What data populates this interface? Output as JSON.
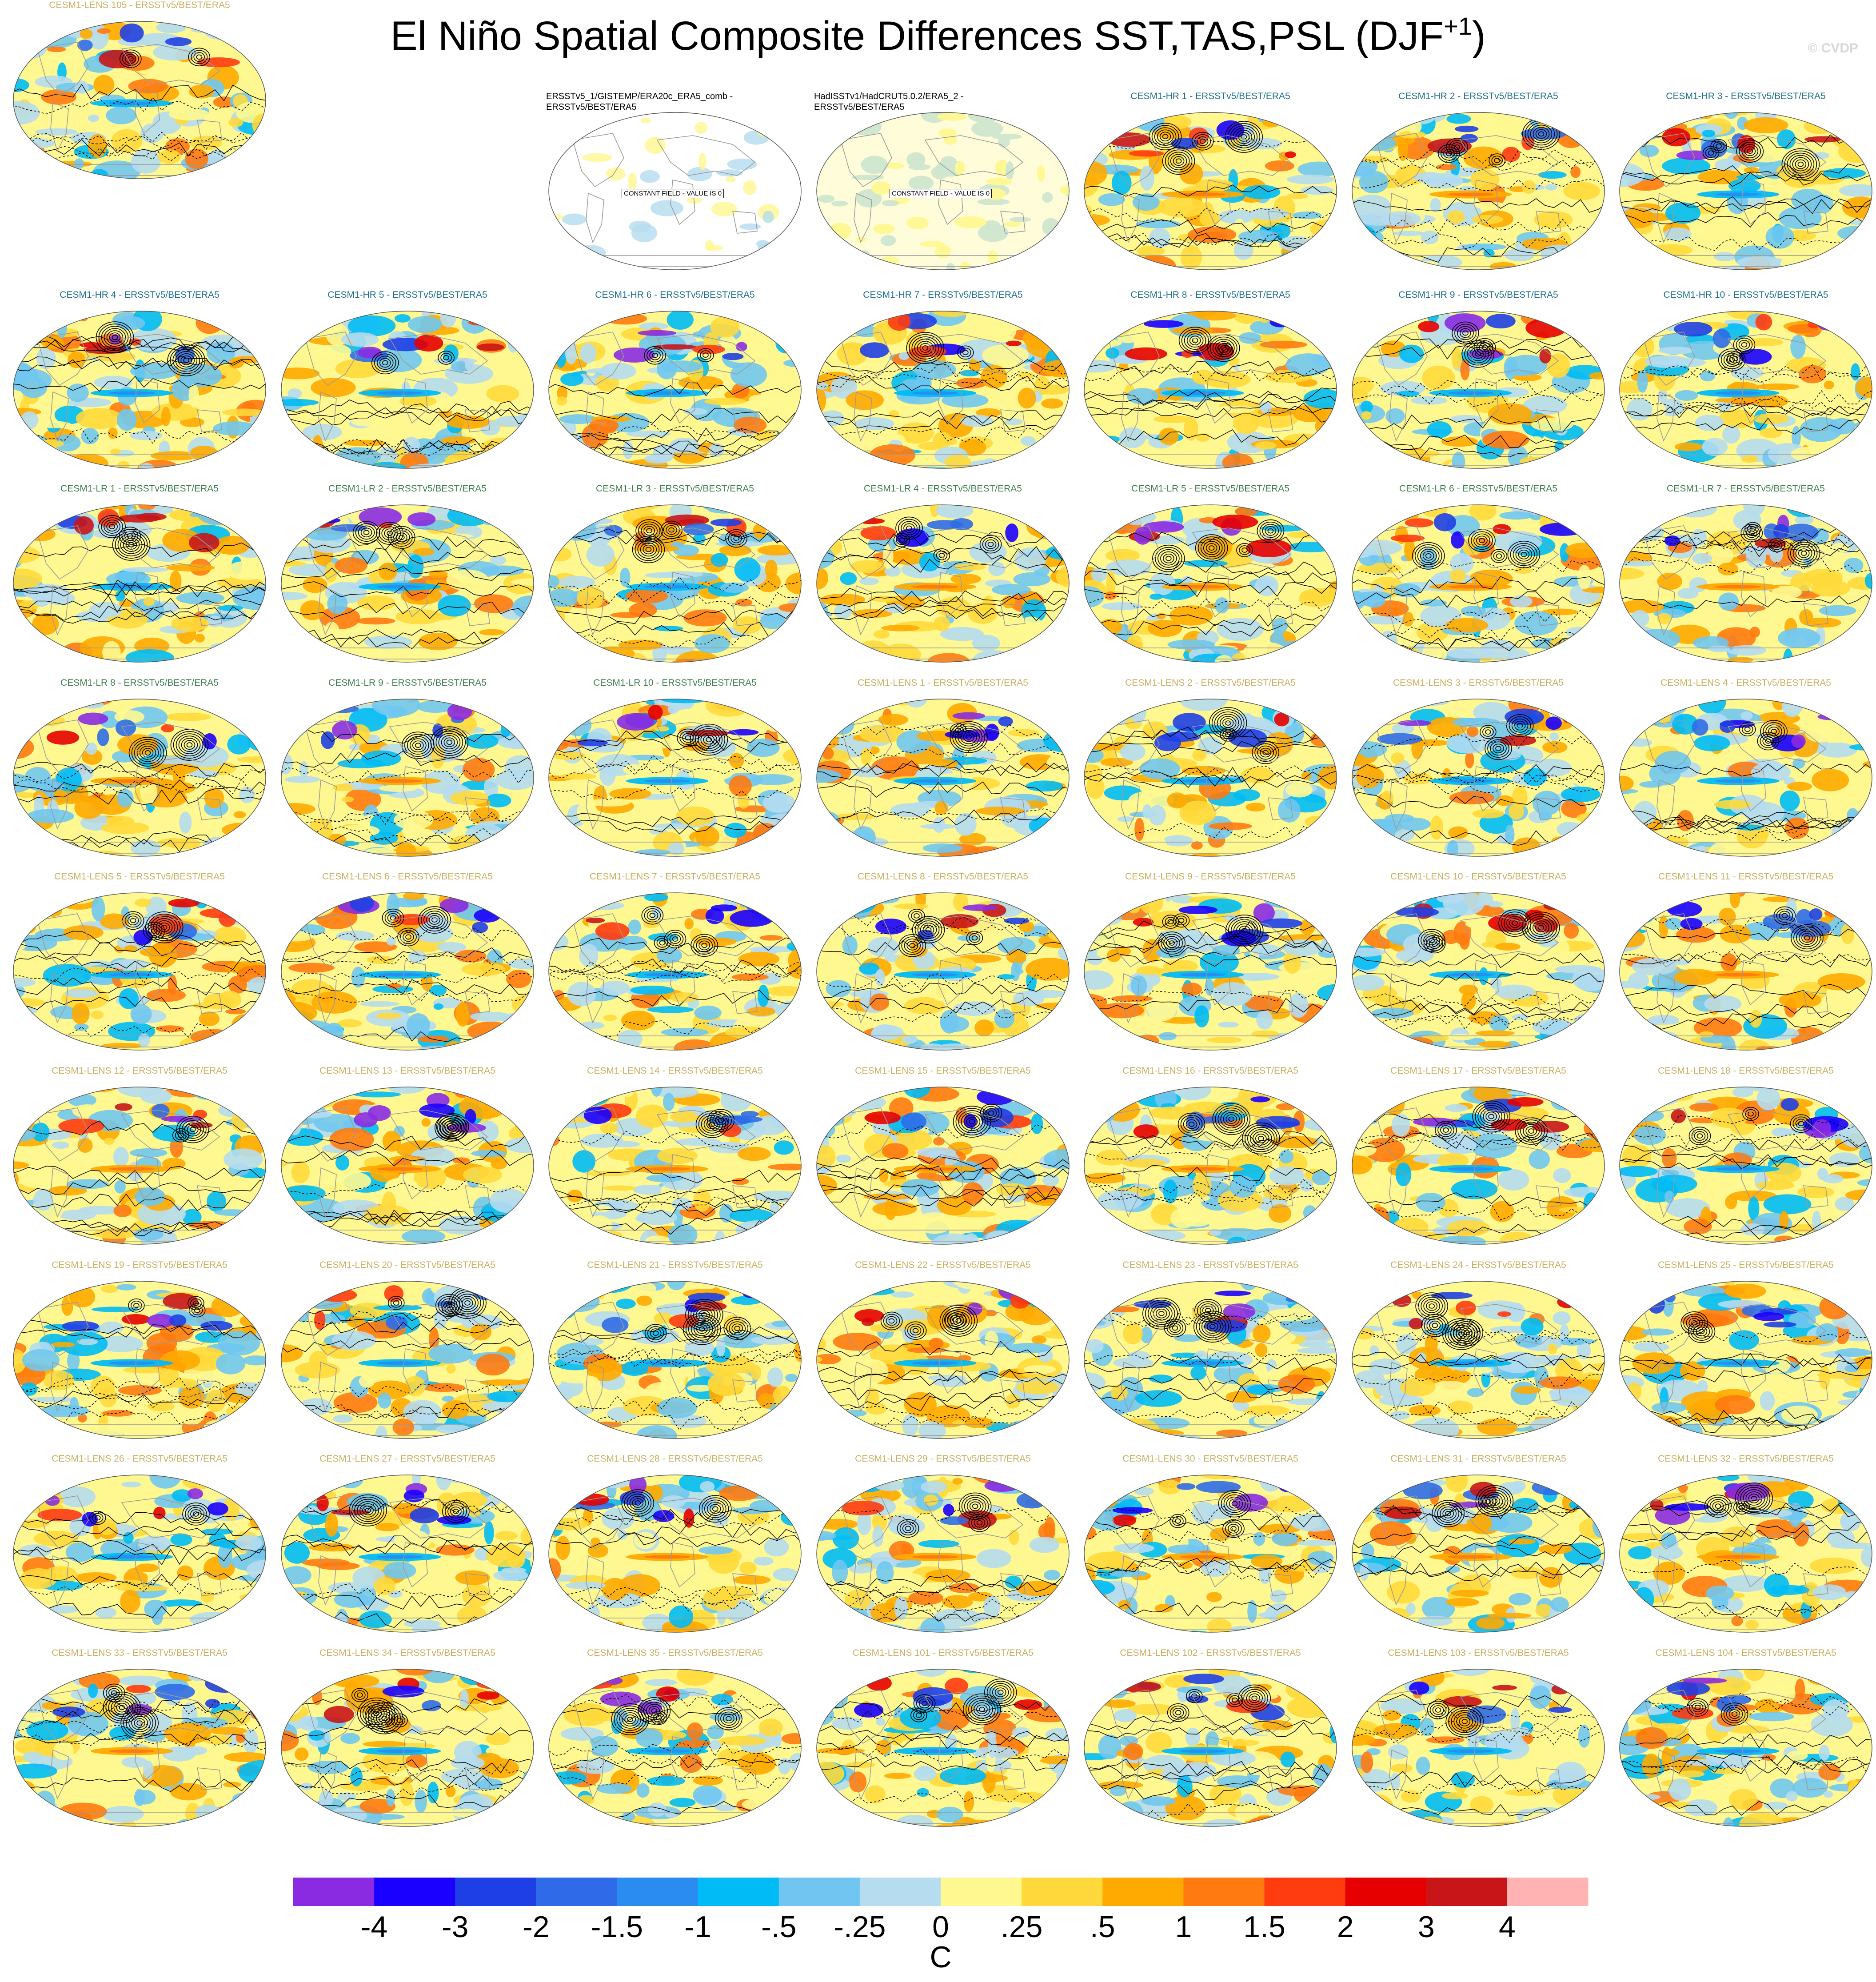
{
  "title": {
    "main": "El Niño Spatial Composite Differences SST,TAS,PSL (DJF",
    "sup": "+1",
    "close": ")"
  },
  "watermark": "© CVDP",
  "colors": {
    "hr_title": "#1f6f8f",
    "lr_title": "#3f7f50",
    "lens_title": "#c8b060",
    "land_outline": "#9a9a9a",
    "contour": "#000000"
  },
  "chart_data": {
    "type": "heatmap",
    "description_variables": [
      "SST",
      "TAS",
      "PSL"
    ],
    "colorbar": {
      "unit": "C",
      "colors": [
        "#8a2be2",
        "#1a00ff",
        "#1f3fe6",
        "#2f6be8",
        "#2a8cf0",
        "#00bbf5",
        "#70c6f0",
        "#b5dcef",
        "#fff891",
        "#ffd93b",
        "#ffaa00",
        "#ff7a10",
        "#ff3b10",
        "#e60000",
        "#c81518",
        "#ffb3b3"
      ],
      "tick_labels": [
        "-4",
        "-3",
        "-2",
        "-1.5",
        "-1",
        "-.5",
        "-.25",
        "0",
        ".25",
        ".5",
        "1",
        "1.5",
        "2",
        "3",
        "4"
      ]
    },
    "panels": [
      {
        "title": "ERSSTv5_1/GISTEMP/ERA20c_ERA5_comb -\nERSSTv5/BEST/ERA5",
        "group": "obs",
        "constant_label": "CONSTANT FIELD - VALUE IS 0"
      },
      {
        "title": "HadISSTv1/HadCRUT5.0.2/ERA5_2 -\nERSSTv5/BEST/ERA5",
        "group": "obs",
        "constant_label": "CONSTANT FIELD - VALUE IS 0"
      },
      {
        "title": "CESM1-HR 1 - ERSSTv5/BEST/ERA5",
        "group": "hr"
      },
      {
        "title": "CESM1-HR 2 - ERSSTv5/BEST/ERA5",
        "group": "hr"
      },
      {
        "title": "CESM1-HR 3 - ERSSTv5/BEST/ERA5",
        "group": "hr"
      },
      {
        "title": "CESM1-HR 4 - ERSSTv5/BEST/ERA5",
        "group": "hr"
      },
      {
        "title": "CESM1-HR 5 - ERSSTv5/BEST/ERA5",
        "group": "hr"
      },
      {
        "title": "CESM1-HR 6 - ERSSTv5/BEST/ERA5",
        "group": "hr"
      },
      {
        "title": "CESM1-HR 7 - ERSSTv5/BEST/ERA5",
        "group": "hr"
      },
      {
        "title": "CESM1-HR 8 - ERSSTv5/BEST/ERA5",
        "group": "hr"
      },
      {
        "title": "CESM1-HR 9 - ERSSTv5/BEST/ERA5",
        "group": "hr"
      },
      {
        "title": "CESM1-HR 10 - ERSSTv5/BEST/ERA5",
        "group": "hr"
      },
      {
        "title": "CESM1-LR 1 - ERSSTv5/BEST/ERA5",
        "group": "lr"
      },
      {
        "title": "CESM1-LR 2 - ERSSTv5/BEST/ERA5",
        "group": "lr"
      },
      {
        "title": "CESM1-LR 3 - ERSSTv5/BEST/ERA5",
        "group": "lr"
      },
      {
        "title": "CESM1-LR 4 - ERSSTv5/BEST/ERA5",
        "group": "lr"
      },
      {
        "title": "CESM1-LR 5 - ERSSTv5/BEST/ERA5",
        "group": "lr"
      },
      {
        "title": "CESM1-LR 6 - ERSSTv5/BEST/ERA5",
        "group": "lr"
      },
      {
        "title": "CESM1-LR 7 - ERSSTv5/BEST/ERA5",
        "group": "lr"
      },
      {
        "title": "CESM1-LR 8 - ERSSTv5/BEST/ERA5",
        "group": "lr"
      },
      {
        "title": "CESM1-LR 9 - ERSSTv5/BEST/ERA5",
        "group": "lr"
      },
      {
        "title": "CESM1-LR 10 - ERSSTv5/BEST/ERA5",
        "group": "lr"
      },
      {
        "title": "CESM1-LENS 1 - ERSSTv5/BEST/ERA5",
        "group": "lens"
      },
      {
        "title": "CESM1-LENS 2 - ERSSTv5/BEST/ERA5",
        "group": "lens"
      },
      {
        "title": "CESM1-LENS 3 - ERSSTv5/BEST/ERA5",
        "group": "lens"
      },
      {
        "title": "CESM1-LENS 4 - ERSSTv5/BEST/ERA5",
        "group": "lens"
      },
      {
        "title": "CESM1-LENS 5 - ERSSTv5/BEST/ERA5",
        "group": "lens"
      },
      {
        "title": "CESM1-LENS 6 - ERSSTv5/BEST/ERA5",
        "group": "lens"
      },
      {
        "title": "CESM1-LENS 7 - ERSSTv5/BEST/ERA5",
        "group": "lens"
      },
      {
        "title": "CESM1-LENS 8 - ERSSTv5/BEST/ERA5",
        "group": "lens"
      },
      {
        "title": "CESM1-LENS 9 - ERSSTv5/BEST/ERA5",
        "group": "lens"
      },
      {
        "title": "CESM1-LENS 10 - ERSSTv5/BEST/ERA5",
        "group": "lens"
      },
      {
        "title": "CESM1-LENS 11 - ERSSTv5/BEST/ERA5",
        "group": "lens"
      },
      {
        "title": "CESM1-LENS 12 - ERSSTv5/BEST/ERA5",
        "group": "lens"
      },
      {
        "title": "CESM1-LENS 13 - ERSSTv5/BEST/ERA5",
        "group": "lens"
      },
      {
        "title": "CESM1-LENS 14 - ERSSTv5/BEST/ERA5",
        "group": "lens"
      },
      {
        "title": "CESM1-LENS 15 - ERSSTv5/BEST/ERA5",
        "group": "lens"
      },
      {
        "title": "CESM1-LENS 16 - ERSSTv5/BEST/ERA5",
        "group": "lens"
      },
      {
        "title": "CESM1-LENS 17 - ERSSTv5/BEST/ERA5",
        "group": "lens"
      },
      {
        "title": "CESM1-LENS 18 - ERSSTv5/BEST/ERA5",
        "group": "lens"
      },
      {
        "title": "CESM1-LENS 19 - ERSSTv5/BEST/ERA5",
        "group": "lens"
      },
      {
        "title": "CESM1-LENS 20 - ERSSTv5/BEST/ERA5",
        "group": "lens"
      },
      {
        "title": "CESM1-LENS 21 - ERSSTv5/BEST/ERA5",
        "group": "lens"
      },
      {
        "title": "CESM1-LENS 22 - ERSSTv5/BEST/ERA5",
        "group": "lens"
      },
      {
        "title": "CESM1-LENS 23 - ERSSTv5/BEST/ERA5",
        "group": "lens"
      },
      {
        "title": "CESM1-LENS 24 - ERSSTv5/BEST/ERA5",
        "group": "lens"
      },
      {
        "title": "CESM1-LENS 25 - ERSSTv5/BEST/ERA5",
        "group": "lens"
      },
      {
        "title": "CESM1-LENS 26 - ERSSTv5/BEST/ERA5",
        "group": "lens"
      },
      {
        "title": "CESM1-LENS 27 - ERSSTv5/BEST/ERA5",
        "group": "lens"
      },
      {
        "title": "CESM1-LENS 28 - ERSSTv5/BEST/ERA5",
        "group": "lens"
      },
      {
        "title": "CESM1-LENS 29 - ERSSTv5/BEST/ERA5",
        "group": "lens"
      },
      {
        "title": "CESM1-LENS 30 - ERSSTv5/BEST/ERA5",
        "group": "lens"
      },
      {
        "title": "CESM1-LENS 31 - ERSSTv5/BEST/ERA5",
        "group": "lens"
      },
      {
        "title": "CESM1-LENS 32 - ERSSTv5/BEST/ERA5",
        "group": "lens"
      },
      {
        "title": "CESM1-LENS 33 - ERSSTv5/BEST/ERA5",
        "group": "lens"
      },
      {
        "title": "CESM1-LENS 34 - ERSSTv5/BEST/ERA5",
        "group": "lens"
      },
      {
        "title": "CESM1-LENS 35 - ERSSTv5/BEST/ERA5",
        "group": "lens"
      },
      {
        "title": "CESM1-LENS 101 - ERSSTv5/BEST/ERA5",
        "group": "lens"
      },
      {
        "title": "CESM1-LENS 102 - ERSSTv5/BEST/ERA5",
        "group": "lens"
      },
      {
        "title": "CESM1-LENS 103 - ERSSTv5/BEST/ERA5",
        "group": "lens"
      },
      {
        "title": "CESM1-LENS 104 - ERSSTv5/BEST/ERA5",
        "group": "lens"
      },
      {
        "title": "CESM1-LENS 105 - ERSSTv5/BEST/ERA5",
        "group": "lens"
      }
    ]
  }
}
